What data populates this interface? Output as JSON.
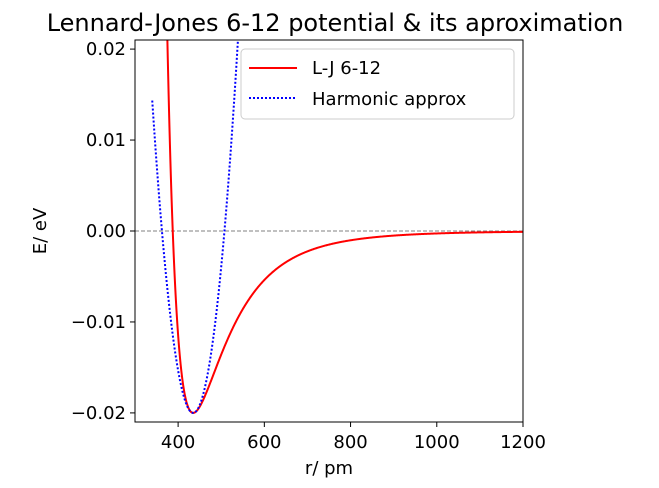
{
  "chart_data": {
    "type": "line",
    "title": "Lennard-Jones 6-12 potential & its aproximation",
    "xlabel": "r/ pm",
    "ylabel": "E/ eV",
    "xlim": [
      300,
      1200
    ],
    "ylim": [
      -0.021,
      0.021
    ],
    "xticks": [
      400,
      600,
      800,
      1000,
      1200
    ],
    "xtick_labels": [
      "400",
      "600",
      "800",
      "1000",
      "1200"
    ],
    "yticks": [
      -0.02,
      -0.01,
      0.0,
      0.01,
      0.02
    ],
    "ytick_labels": [
      "−0.02",
      "−0.01",
      "0.00",
      "0.01",
      "0.02"
    ],
    "legend_position": "top-right",
    "reference_line": {
      "y": 0.0,
      "style": "dashed",
      "color": "#808080"
    },
    "series": [
      {
        "name": "L-J 6-12",
        "color": "#ff0000",
        "style": "solid",
        "function": "lennard-jones",
        "params": {
          "epsilon": 0.02,
          "r_min": 435
        },
        "x": [
          360,
          370,
          380,
          390,
          400,
          410,
          420,
          435,
          450,
          475,
          500,
          550,
          600,
          650,
          700,
          800,
          900,
          1000,
          1100,
          1200
        ],
        "y": [
          0.0266,
          0.0112,
          0.0018,
          -0.0069,
          -0.0125,
          -0.0164,
          -0.0187,
          -0.02,
          -0.0196,
          -0.0176,
          -0.0151,
          -0.0106,
          -0.0071,
          -0.0048,
          -0.0033,
          -0.0016,
          -0.0008,
          -0.0005,
          -0.0003,
          -0.0002
        ]
      },
      {
        "name": "Harmonic approx",
        "color": "#0000ff",
        "style": "dotted",
        "function": "harmonic",
        "params": {
          "epsilon": 0.02,
          "r_min": 435
        },
        "x": [
          360,
          380,
          400,
          420,
          435,
          450,
          470,
          490,
          500,
          510
        ],
        "y": [
          0.0215,
          0.0048,
          -0.0126,
          -0.0189,
          -0.02,
          -0.0184,
          -0.0114,
          0.0026,
          0.0126,
          0.0226
        ]
      }
    ]
  }
}
